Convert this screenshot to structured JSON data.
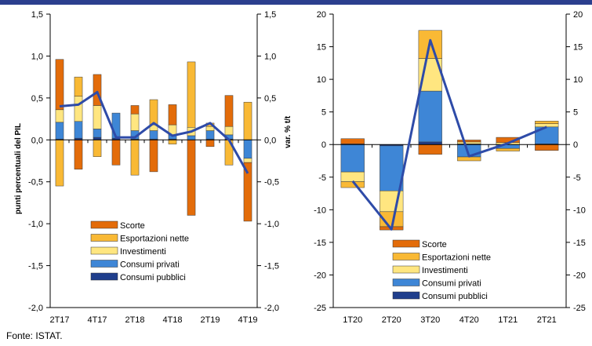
{
  "source_note": "Fonte: ISTAT.",
  "colors": {
    "top_bar": "#2B3F8E",
    "scorte": "#E36C0A",
    "esportazioni_nette": "#F9B935",
    "investimenti": "#FFE680",
    "consumi_privati": "#3E86D6",
    "consumi_pubblici": "#1F3E8C",
    "line": "#2E4BA8"
  },
  "chart_data": [
    {
      "type": "bar",
      "stacked": true,
      "title": "",
      "ylabel": "punti percentuali del PIL",
      "y2label": "var. % t/t",
      "ylim": [
        -2.0,
        1.5
      ],
      "y2lim": [
        -2.0,
        1.5
      ],
      "yticks": [
        "1,5",
        "1,0",
        "0,5",
        "0,0",
        "-0,5",
        "-1,0",
        "-1,5",
        "-2,0"
      ],
      "y2ticks": [
        "1,5",
        "1,0",
        "0,5",
        "0,0",
        "-0,5",
        "-1,0",
        "-1,5",
        "-2,0"
      ],
      "ytick_values": [
        1.5,
        1.0,
        0.5,
        0.0,
        -0.5,
        -1.0,
        -1.5,
        -2.0
      ],
      "categories": [
        "2T17",
        "3T17",
        "4T17",
        "1T18",
        "2T18",
        "3T18",
        "4T18",
        "1T19",
        "2T19",
        "3T19",
        "4T19"
      ],
      "xtick_labels": [
        "2T17",
        "",
        "4T17",
        "",
        "2T18",
        "",
        "4T18",
        "",
        "2T19",
        "",
        "4T19"
      ],
      "series": [
        {
          "name": "Consumi pubblici",
          "color_key": "consumi_pubblici",
          "values": [
            0.01,
            0.02,
            0.03,
            0.02,
            0.01,
            0.01,
            0.01,
            0.0,
            0.01,
            0.01,
            0.0
          ]
        },
        {
          "name": "Consumi privati",
          "color_key": "consumi_privati",
          "values": [
            0.2,
            0.2,
            0.1,
            0.3,
            0.1,
            0.1,
            0.05,
            0.05,
            0.1,
            0.05,
            -0.22
          ]
        },
        {
          "name": "Investimenti",
          "color_key": "investimenti",
          "values": [
            0.15,
            0.3,
            0.28,
            0.0,
            0.2,
            0.07,
            0.12,
            0.1,
            0.05,
            0.1,
            -0.05
          ]
        },
        {
          "name": "Esportazioni nette",
          "color_key": "esportazioni_nette",
          "values": [
            -0.55,
            0.23,
            -0.2,
            0.0,
            -0.42,
            0.3,
            -0.05,
            0.78,
            0.04,
            -0.3,
            0.45
          ]
        },
        {
          "name": "Scorte",
          "color_key": "scorte",
          "values": [
            0.6,
            -0.35,
            0.37,
            -0.3,
            0.1,
            -0.38,
            0.24,
            -0.9,
            -0.08,
            0.37,
            -0.7
          ]
        }
      ],
      "line": {
        "name": "var. % t/t",
        "values": [
          0.4,
          0.42,
          0.57,
          0.03,
          0.03,
          0.2,
          0.05,
          0.1,
          0.2,
          0.0,
          -0.4
        ]
      }
    },
    {
      "type": "bar",
      "stacked": true,
      "title": "",
      "ylabel": "",
      "ylim": [
        -25,
        20
      ],
      "y2lim": [
        -25,
        20
      ],
      "yticks": [
        "20",
        "15",
        "10",
        "5",
        "0",
        "-5",
        "-10",
        "-15",
        "-20",
        "-25"
      ],
      "y2ticks": [
        "20",
        "15",
        "10",
        "5",
        "0",
        "-5",
        "-10",
        "-15",
        "-20",
        "-25"
      ],
      "ytick_values": [
        20,
        15,
        10,
        5,
        0,
        -5,
        -10,
        -15,
        -20,
        -25
      ],
      "categories": [
        "1T20",
        "2T20",
        "3T20",
        "4T20",
        "1T21",
        "2T21"
      ],
      "xtick_labels": [
        "1T20",
        "2T20",
        "3T20",
        "4T20",
        "1T21",
        "2T21"
      ],
      "series": [
        {
          "name": "Consumi pubblici",
          "color_key": "consumi_pubblici",
          "values": [
            0.1,
            -0.2,
            0.4,
            0.1,
            0.0,
            0.1
          ]
        },
        {
          "name": "Consumi privati",
          "color_key": "consumi_privati",
          "values": [
            -4.2,
            -6.9,
            7.8,
            -1.9,
            -0.6,
            2.6
          ]
        },
        {
          "name": "Investimenti",
          "color_key": "investimenti",
          "values": [
            -1.5,
            -3.2,
            5.0,
            0.3,
            0.3,
            0.5
          ]
        },
        {
          "name": "Esportazioni nette",
          "color_key": "esportazioni_nette",
          "values": [
            -0.9,
            -2.3,
            4.3,
            -0.6,
            -0.4,
            0.4
          ]
        },
        {
          "name": "Scorte",
          "color_key": "scorte",
          "values": [
            0.8,
            -0.5,
            -1.5,
            0.3,
            0.8,
            -0.9
          ]
        }
      ],
      "line": {
        "name": "var. % t/t",
        "values": [
          -5.6,
          -13.0,
          16.0,
          -1.8,
          0.2,
          2.7
        ]
      }
    }
  ],
  "legend": [
    {
      "label": "Scorte",
      "color_key": "scorte"
    },
    {
      "label": "Esportazioni nette",
      "color_key": "esportazioni_nette"
    },
    {
      "label": "Investimenti",
      "color_key": "investimenti"
    },
    {
      "label": "Consumi privati",
      "color_key": "consumi_privati"
    },
    {
      "label": "Consumi pubblici",
      "color_key": "consumi_pubblici"
    }
  ]
}
